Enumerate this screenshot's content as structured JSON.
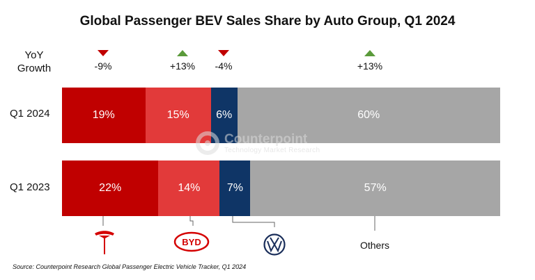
{
  "chart_data": {
    "type": "bar",
    "orientation": "horizontal",
    "stacked": true,
    "normalized_percent": true,
    "title": "Global Passenger BEV Sales Share by Auto Group, Q1 2024",
    "categories": [
      "Q1 2024",
      "Q1 2023"
    ],
    "series": [
      {
        "name": "Tesla",
        "values": [
          19,
          22
        ],
        "labels": [
          "19%",
          "22%"
        ],
        "color": "#c00000"
      },
      {
        "name": "BYD",
        "values": [
          15,
          14
        ],
        "labels": [
          "15%",
          "14%"
        ],
        "color": "#e23a3a"
      },
      {
        "name": "Volkswagen",
        "values": [
          6,
          7
        ],
        "labels": [
          "6%",
          "7%"
        ],
        "color": "#0f3566"
      },
      {
        "name": "Others",
        "values": [
          60,
          57
        ],
        "labels": [
          "60%",
          "57%"
        ],
        "color": "#a6a6a6"
      }
    ],
    "yoy": {
      "label": "YoY Growth",
      "items": [
        {
          "text": "-9%",
          "direction": "down"
        },
        {
          "text": "+13%",
          "direction": "up"
        },
        {
          "text": "-4%",
          "direction": "down"
        },
        {
          "text": "+13%",
          "direction": "up"
        }
      ]
    },
    "legend": {
      "tesla_icon": "tesla-logo",
      "byd_icon": "byd-logo",
      "vw_icon": "volkswagen-logo",
      "others_label": "Others"
    },
    "watermark": {
      "line1": "Counterpoint",
      "line2": "Technology Market Research"
    },
    "source": "Source: Counterpoint Research Global Passenger Electric Vehicle Tracker, Q1 2024"
  }
}
